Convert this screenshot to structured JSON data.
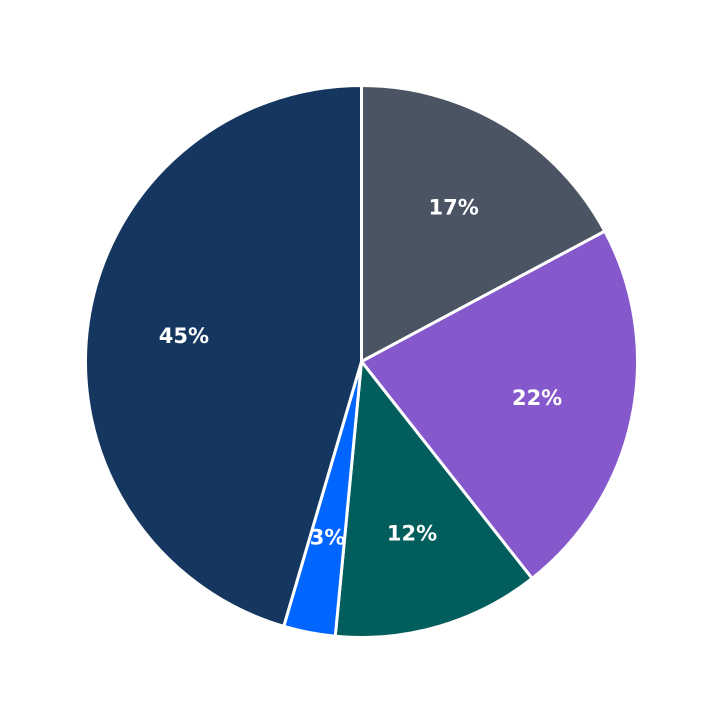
{
  "chart_data": {
    "type": "pie",
    "start_angle": "12 o'clock",
    "direction": "clockwise",
    "slices": [
      {
        "value": 17,
        "label": "17%",
        "color": "#4a5462"
      },
      {
        "value": 22,
        "label": "22%",
        "color": "#8558cc"
      },
      {
        "value": 12,
        "label": "12%",
        "color": "#025e5c"
      },
      {
        "value": 3,
        "label": "3%",
        "color": "#0066ff"
      },
      {
        "value": 45,
        "label": "45%",
        "color": "#15375f"
      }
    ]
  }
}
